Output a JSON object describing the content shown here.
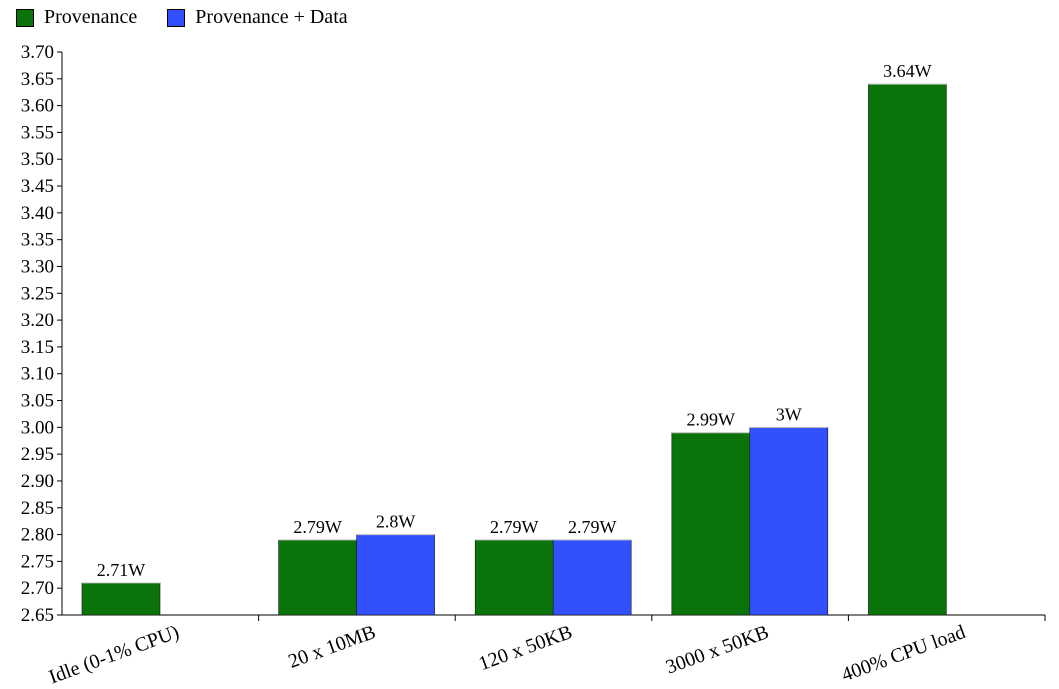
{
  "chart_data": {
    "type": "bar",
    "categories": [
      "Idle (0-1% CPU)",
      "20 x 10MB",
      "120 x 50KB",
      "3000 x 50KB",
      "400% CPU load"
    ],
    "series": [
      {
        "name": "Provenance",
        "color": "#0a740a",
        "values": [
          2.71,
          2.79,
          2.79,
          2.99,
          3.64
        ],
        "labels": [
          "2.71W",
          "2.79W",
          "2.79W",
          "2.99W",
          "3.64W"
        ]
      },
      {
        "name": "Provenance + Data",
        "color": "#3350ff",
        "values": [
          null,
          2.8,
          2.79,
          3.0,
          null
        ],
        "labels": [
          "",
          "2.8W",
          "2.79W",
          "3W",
          ""
        ]
      }
    ],
    "ylim": [
      2.65,
      3.7
    ],
    "yticks": [
      "2.65",
      "2.70",
      "2.75",
      "2.80",
      "2.85",
      "2.90",
      "2.95",
      "3.00",
      "3.05",
      "3.10",
      "3.15",
      "3.20",
      "3.25",
      "3.30",
      "3.35",
      "3.40",
      "3.45",
      "3.50",
      "3.55",
      "3.60",
      "3.65",
      "3.70"
    ],
    "legend_position": "top-left",
    "grid": false
  }
}
